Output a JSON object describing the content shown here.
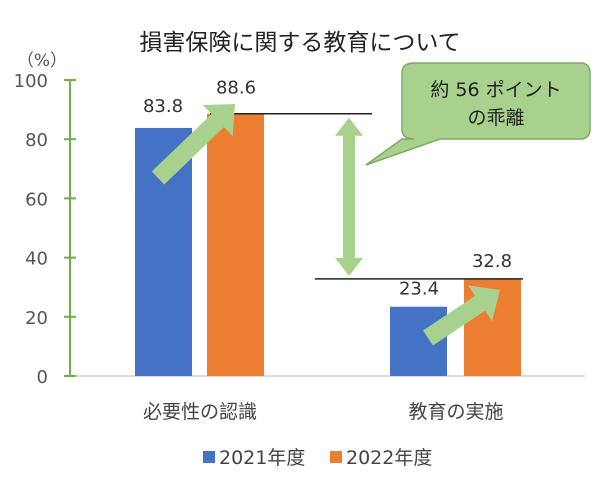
{
  "chart_data": {
    "type": "bar",
    "title": "損害保険に関する教育について",
    "ylabel": "（%）",
    "ylim": [
      0,
      100
    ],
    "yticks": [
      0,
      20,
      40,
      60,
      80,
      100
    ],
    "categories": [
      "必要性の認識",
      "教育の実施"
    ],
    "series": [
      {
        "name": "2021年度",
        "values": [
          83.8,
          23.4
        ],
        "color": "#4472c4"
      },
      {
        "name": "2022年度",
        "values": [
          88.6,
          32.8
        ],
        "color": "#ed7d31"
      }
    ],
    "data_labels": [
      "83.8",
      "23.4",
      "88.6",
      "32.8"
    ],
    "annotation": {
      "line1": "約 56 ポイント",
      "line2": "の乖離"
    },
    "legend_position": "bottom",
    "grid": false,
    "axis_color": "#70ad47",
    "arrow_color": "#a9d18e"
  }
}
